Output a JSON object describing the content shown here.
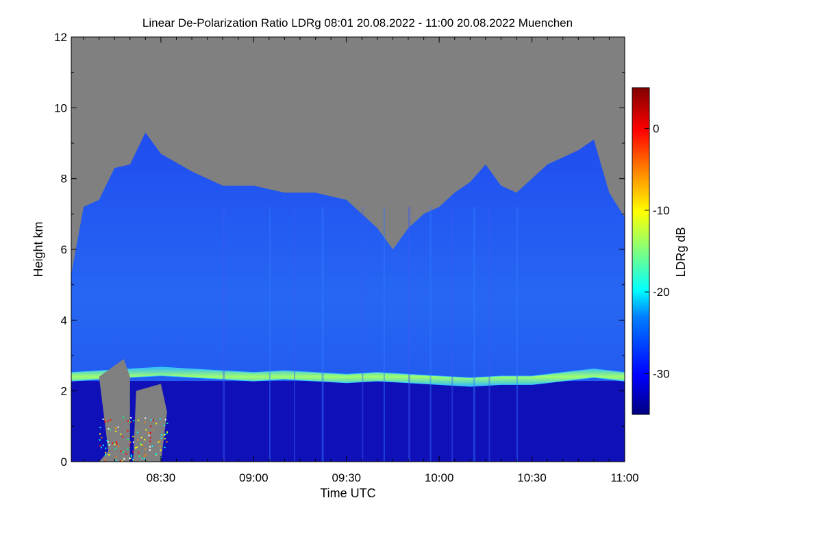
{
  "chart_data": {
    "type": "heatmap",
    "title": "Linear De-Polarization Ratio LDRg   08:01 20.08.2022 - 11:00 20.08.2022 Muenchen",
    "xlabel": "Time UTC",
    "ylabel": "Height km",
    "colorbar_label": "LDRg dB",
    "x_range": [
      "08:01",
      "11:00"
    ],
    "y_range": [
      0,
      12
    ],
    "color_range": [
      -35,
      5
    ],
    "x_ticks": [
      "08:30",
      "09:00",
      "09:30",
      "10:00",
      "10:30",
      "11:00"
    ],
    "x_tick_minutes": [
      510,
      540,
      570,
      600,
      630,
      660
    ],
    "x_start_minute": 481,
    "x_end_minute": 660,
    "y_ticks": [
      "0",
      "2",
      "4",
      "6",
      "8",
      "10",
      "12"
    ],
    "y_tick_values": [
      0,
      2,
      4,
      6,
      8,
      10,
      12
    ],
    "colorbar_ticks": [
      "0",
      "-10",
      "-20",
      "-30"
    ],
    "colorbar_tick_values": [
      0,
      -10,
      -20,
      -30
    ],
    "no_data_color": "#808080",
    "features": {
      "melting_layer_height_km": [
        [
          481,
          2.4
        ],
        [
          490,
          2.45
        ],
        [
          500,
          2.5
        ],
        [
          510,
          2.55
        ],
        [
          520,
          2.5
        ],
        [
          530,
          2.45
        ],
        [
          540,
          2.4
        ],
        [
          550,
          2.45
        ],
        [
          560,
          2.4
        ],
        [
          570,
          2.35
        ],
        [
          580,
          2.4
        ],
        [
          590,
          2.35
        ],
        [
          600,
          2.3
        ],
        [
          610,
          2.25
        ],
        [
          620,
          2.3
        ],
        [
          630,
          2.3
        ],
        [
          640,
          2.4
        ],
        [
          650,
          2.5
        ],
        [
          660,
          2.4
        ]
      ],
      "cloud_top_km": [
        [
          481,
          5.3
        ],
        [
          485,
          7.2
        ],
        [
          490,
          7.4
        ],
        [
          495,
          8.3
        ],
        [
          500,
          8.4
        ],
        [
          505,
          9.3
        ],
        [
          510,
          8.7
        ],
        [
          520,
          8.2
        ],
        [
          530,
          7.8
        ],
        [
          540,
          7.8
        ],
        [
          550,
          7.6
        ],
        [
          560,
          7.6
        ],
        [
          570,
          7.4
        ],
        [
          575,
          7.0
        ],
        [
          580,
          6.6
        ],
        [
          585,
          6.0
        ],
        [
          590,
          6.6
        ],
        [
          595,
          7.0
        ],
        [
          600,
          7.2
        ],
        [
          605,
          7.6
        ],
        [
          610,
          7.9
        ],
        [
          615,
          8.4
        ],
        [
          620,
          7.8
        ],
        [
          625,
          7.6
        ],
        [
          630,
          8.0
        ],
        [
          635,
          8.4
        ],
        [
          640,
          8.6
        ],
        [
          645,
          8.8
        ],
        [
          650,
          9.1
        ],
        [
          655,
          7.6
        ],
        [
          660,
          6.9
        ]
      ]
    }
  }
}
